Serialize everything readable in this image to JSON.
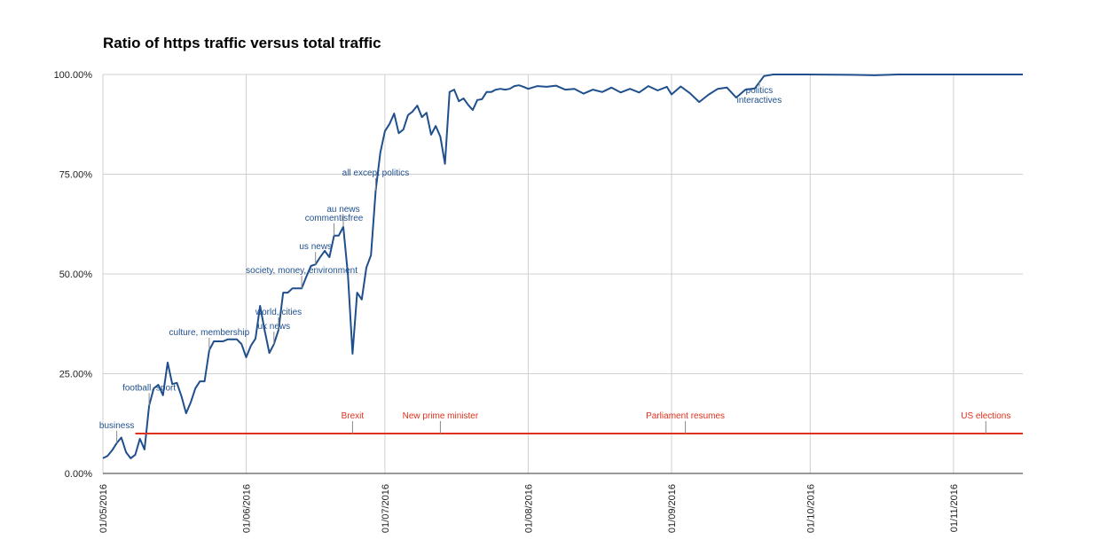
{
  "chart_data": {
    "type": "line",
    "title": "Ratio of https traffic versus total traffic",
    "xlim": [
      "01/05/2016",
      "16/11/2016"
    ],
    "xticks": [
      "01/05/2016",
      "01/06/2016",
      "01/07/2016",
      "01/08/2016",
      "01/09/2016",
      "01/10/2016",
      "01/11/2016"
    ],
    "ylim": [
      0,
      100
    ],
    "yticks": [
      {
        "value": 0,
        "label": "0.00%"
      },
      {
        "value": 25,
        "label": "25.00%"
      },
      {
        "value": 50,
        "label": "50.00%"
      },
      {
        "value": 75,
        "label": "75.00%"
      },
      {
        "value": 100,
        "label": "100.00%"
      }
    ],
    "grid": true,
    "series": [
      {
        "color": "#1f4f8c",
        "x": [
          "01/05/2016",
          "02/05/2016",
          "03/05/2016",
          "04/05/2016",
          "05/05/2016",
          "06/05/2016",
          "07/05/2016",
          "08/05/2016",
          "09/05/2016",
          "10/05/2016",
          "11/05/2016",
          "12/05/2016",
          "13/05/2016",
          "14/05/2016",
          "15/05/2016",
          "16/05/2016",
          "17/05/2016",
          "18/05/2016",
          "19/05/2016",
          "20/05/2016",
          "21/05/2016",
          "22/05/2016",
          "23/05/2016",
          "24/05/2016",
          "25/05/2016",
          "26/05/2016",
          "27/05/2016",
          "28/05/2016",
          "29/05/2016",
          "30/05/2016",
          "31/05/2016",
          "01/06/2016",
          "02/06/2016",
          "03/06/2016",
          "04/06/2016",
          "05/06/2016",
          "06/06/2016",
          "07/06/2016",
          "08/06/2016",
          "09/06/2016",
          "10/06/2016",
          "11/06/2016",
          "12/06/2016",
          "13/06/2016",
          "14/06/2016",
          "15/06/2016",
          "16/06/2016",
          "17/06/2016",
          "18/06/2016",
          "19/06/2016",
          "20/06/2016",
          "21/06/2016",
          "22/06/2016",
          "23/06/2016",
          "24/06/2016",
          "25/06/2016",
          "26/06/2016",
          "27/06/2016",
          "28/06/2016",
          "29/06/2016",
          "30/06/2016",
          "01/07/2016",
          "02/07/2016",
          "03/07/2016",
          "04/07/2016",
          "05/07/2016",
          "06/07/2016",
          "07/07/2016",
          "08/07/2016",
          "09/07/2016",
          "10/07/2016",
          "11/07/2016",
          "12/07/2016",
          "13/07/2016",
          "14/07/2016",
          "15/07/2016",
          "16/07/2016",
          "17/07/2016",
          "18/07/2016",
          "19/07/2016",
          "20/07/2016",
          "21/07/2016",
          "22/07/2016",
          "23/07/2016",
          "24/07/2016",
          "25/07/2016",
          "26/07/2016",
          "27/07/2016",
          "28/07/2016",
          "29/07/2016",
          "30/07/2016",
          "31/07/2016",
          "01/08/2016",
          "03/08/2016",
          "05/08/2016",
          "07/08/2016",
          "09/08/2016",
          "11/08/2016",
          "13/08/2016",
          "15/08/2016",
          "17/08/2016",
          "19/08/2016",
          "21/08/2016",
          "23/08/2016",
          "25/08/2016",
          "27/08/2016",
          "29/08/2016",
          "31/08/2016",
          "01/09/2016",
          "03/09/2016",
          "05/09/2016",
          "07/09/2016",
          "09/09/2016",
          "11/09/2016",
          "13/09/2016",
          "15/09/2016",
          "17/09/2016",
          "19/09/2016",
          "21/09/2016",
          "23/09/2016",
          "30/09/2016",
          "10/10/2016",
          "15/10/2016",
          "20/10/2016",
          "16/11/2016"
        ],
        "values": [
          3.8,
          4.4,
          5.8,
          7.6,
          9,
          5.3,
          3.8,
          4.7,
          8.7,
          6,
          17,
          21.3,
          22.2,
          19.6,
          27.8,
          22.4,
          22.7,
          19.3,
          15.1,
          17.8,
          21.3,
          23.1,
          23.1,
          30.9,
          33.1,
          33.1,
          33.1,
          33.6,
          33.6,
          33.6,
          32.4,
          29.1,
          32,
          33.8,
          42,
          35.8,
          30.2,
          32.4,
          36,
          45.3,
          45.3,
          46.4,
          46.4,
          46.4,
          49.3,
          52,
          52.4,
          54.2,
          55.8,
          54.2,
          59.6,
          59.6,
          61.8,
          49.8,
          30,
          45.3,
          43.6,
          51.6,
          54.7,
          70.9,
          80.4,
          85.8,
          87.6,
          90.2,
          85.3,
          86.2,
          89.8,
          90.7,
          92.2,
          89.3,
          90.4,
          84.9,
          87.1,
          84.4,
          77.6,
          95.6,
          96.2,
          93.3,
          94,
          92.4,
          91.1,
          93.6,
          93.8,
          95.6,
          95.6,
          96.2,
          96.4,
          96.2,
          96.4,
          97.1,
          97.3,
          96.9,
          96.4,
          97.1,
          96.9,
          97.2,
          96.2,
          96.4,
          95.2,
          96.2,
          95.6,
          96.7,
          95.5,
          96.4,
          95.5,
          97.1,
          96,
          96.9,
          95,
          97,
          95.3,
          93.1,
          94.9,
          96.4,
          96.7,
          94.2,
          96.2,
          96.5,
          99.6,
          100,
          100,
          99.9,
          99.8,
          100,
          100
        ],
        "annotations": [
          {
            "x": "04/05/2016",
            "text": "business"
          },
          {
            "x": "11/05/2016",
            "text": "football, sport"
          },
          {
            "x": "24/05/2016",
            "text": "culture, membership"
          },
          {
            "x": "07/06/2016",
            "text": "uk news"
          },
          {
            "x": "08/06/2016",
            "text": "world, cities"
          },
          {
            "x": "13/06/2016",
            "text": "society, money, environment"
          },
          {
            "x": "16/06/2016",
            "text": "us news"
          },
          {
            "x": "20/06/2016",
            "text": "commentisfree"
          },
          {
            "x": "22/06/2016",
            "text": "au news"
          },
          {
            "x": "29/06/2016",
            "text": "all except politics"
          },
          {
            "x": "20/09/2016",
            "text": "politics"
          },
          {
            "x": "20/09/2016",
            "text": "interactives"
          }
        ]
      },
      {
        "color": "#e0301e",
        "x": [
          "08/05/2016",
          "16/11/2016"
        ],
        "values": [
          10,
          10
        ],
        "annotations": [
          {
            "x": "24/06/2016",
            "text": "Brexit"
          },
          {
            "x": "13/07/2016",
            "text": "New prime minister"
          },
          {
            "x": "04/09/2016",
            "text": "Parliament resumes"
          },
          {
            "x": "08/11/2016",
            "text": "US elections"
          }
        ]
      }
    ]
  }
}
